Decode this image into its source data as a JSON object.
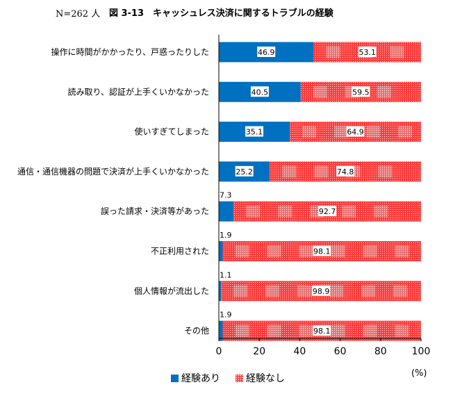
{
  "header": {
    "n_label": "N=262 人",
    "title": "図 3-13　キャッシュレス決済に関するトラブルの経験"
  },
  "legend": {
    "yes": "経験あり",
    "no": "経験なし"
  },
  "unit_label": "(%)",
  "colors": {
    "yes": "#0070c0",
    "no": "#ff3b3b",
    "no_light": "#ffb0b0"
  },
  "chart_data": {
    "type": "bar",
    "orientation": "horizontal",
    "stacked": true,
    "title": "図 3-13　キャッシュレス決済に関するトラブルの経験",
    "categories": [
      "操作に時間がかかったり、戸惑ったりした",
      "読み取り、認証が上手くいかなかった",
      "使いすぎてしまった",
      "通信・通信機器の問題で決済が上手くいかなかった",
      "誤った請求・決済等があった",
      "不正利用された",
      "個人情報が流出した",
      "その他"
    ],
    "series": [
      {
        "name": "経験あり",
        "values": [
          46.9,
          40.5,
          35.1,
          25.2,
          7.3,
          1.9,
          1.1,
          1.9
        ]
      },
      {
        "name": "経験なし",
        "values": [
          53.1,
          59.5,
          64.9,
          74.8,
          92.7,
          98.1,
          98.9,
          98.1
        ]
      }
    ],
    "xlim": [
      0,
      100
    ],
    "xticks": [
      0,
      20,
      40,
      60,
      80,
      100
    ],
    "legend_position": "bottom",
    "grid": false
  }
}
